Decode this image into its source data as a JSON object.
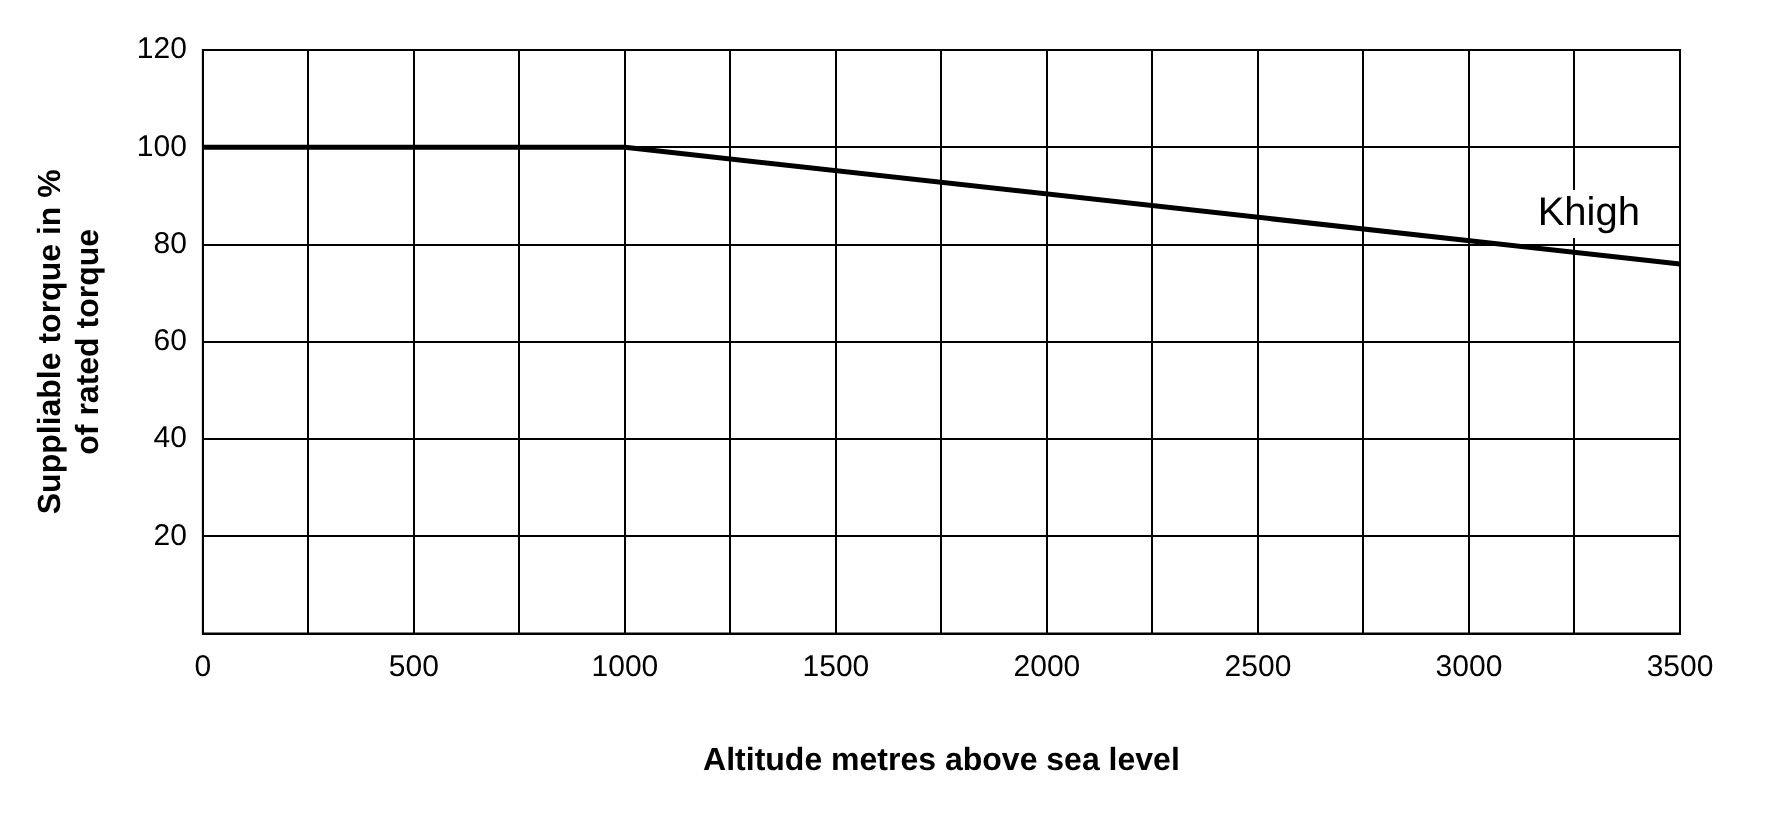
{
  "chart_data": {
    "type": "line",
    "xlabel": "Altitude metres above sea level",
    "ylabel": "Suppliable torque in %\nof rated torque",
    "series": [
      {
        "name": "Khigh",
        "color": "#000000",
        "x": [
          0,
          1000,
          3500
        ],
        "values": [
          100,
          100,
          76
        ]
      }
    ],
    "xlim": [
      0,
      3500
    ],
    "xticks": [
      0,
      {
        "value": 250,
        "label": null
      },
      500,
      {
        "value": 750,
        "label": null
      },
      1000,
      {
        "value": 1250,
        "label": null
      },
      1500,
      {
        "value": 1750,
        "label": null
      },
      2000,
      {
        "value": 2250,
        "label": null
      },
      2500,
      {
        "value": 2750,
        "label": null
      },
      3000,
      {
        "value": 3250,
        "label": null
      },
      3500
    ],
    "ylim": [
      0,
      120
    ],
    "yticks": [
      {
        "value": 0,
        "label": null
      },
      20,
      40,
      60,
      80,
      100,
      120
    ],
    "grid": true,
    "legend": false,
    "marker": "none",
    "line_style": "solid"
  }
}
